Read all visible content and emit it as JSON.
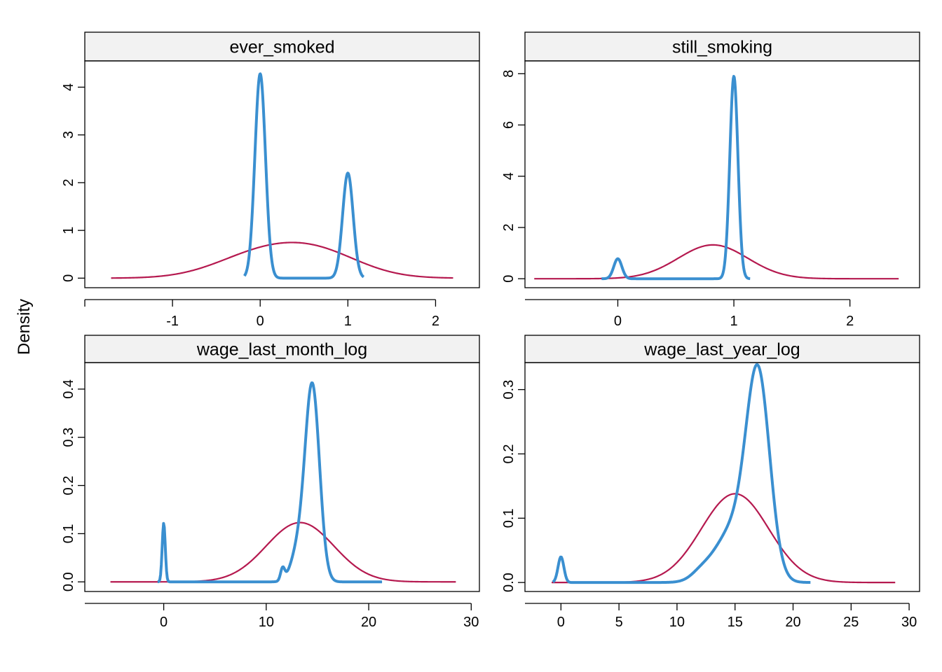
{
  "ylabel": "Density",
  "colors": {
    "observed": "#3a8fd0",
    "imputed": "#b5194f",
    "strip_bg": "#f2f2f2"
  },
  "chart_data": [
    {
      "type": "line",
      "title": "ever_smoked",
      "xlim": [
        -2.0,
        2.5
      ],
      "ylim": [
        -0.2,
        4.55
      ],
      "xticks": [
        -1,
        0,
        1,
        2
      ],
      "yticks": [
        0,
        1,
        2,
        3,
        4
      ],
      "series": [
        {
          "role": "observed",
          "kind": "mixture",
          "range": [
            -0.18,
            1.18
          ],
          "components": [
            {
              "mu": 0,
              "sd": 0.06,
              "peak": 4.28
            },
            {
              "mu": 1,
              "sd": 0.06,
              "peak": 2.2
            }
          ]
        },
        {
          "role": "imputed",
          "kind": "mixture",
          "range": [
            -1.7,
            2.2
          ],
          "components": [
            {
              "mu": -0.05,
              "sd": 0.5,
              "peak": 0.43
            },
            {
              "mu": 0.65,
              "sd": 0.5,
              "peak": 0.52
            }
          ]
        }
      ]
    },
    {
      "type": "line",
      "title": "still_smoking",
      "xlim": [
        -0.8,
        2.6
      ],
      "ylim": [
        -0.35,
        8.5
      ],
      "xticks": [
        0,
        1,
        2
      ],
      "yticks": [
        0,
        2,
        4,
        6,
        8
      ],
      "series": [
        {
          "role": "observed",
          "kind": "mixture",
          "range": [
            -0.14,
            1.14
          ],
          "components": [
            {
              "mu": 0,
              "sd": 0.035,
              "peak": 0.78
            },
            {
              "mu": 1,
              "sd": 0.035,
              "peak": 7.9
            }
          ]
        },
        {
          "role": "imputed",
          "kind": "mixture",
          "range": [
            -0.72,
            2.42
          ],
          "components": [
            {
              "mu": 0.82,
              "sd": 0.3,
              "peak": 1.32
            }
          ]
        }
      ]
    },
    {
      "type": "line",
      "title": "wage_last_month_log",
      "xlim": [
        -7.7,
        30.8
      ],
      "ylim": [
        -0.02,
        0.455
      ],
      "xticks": [
        0,
        10,
        20,
        30
      ],
      "yticks": [
        0.0,
        0.1,
        0.2,
        0.3,
        0.4
      ],
      "series": [
        {
          "role": "observed",
          "kind": "mixture",
          "range": [
            -0.6,
            21.3
          ],
          "components": [
            {
              "mu": 0,
              "sd": 0.15,
              "peak": 0.122
            },
            {
              "mu": 11.6,
              "sd": 0.2,
              "peak": 0.025
            },
            {
              "mu": 13.1,
              "sd": 0.7,
              "peak": 0.06
            },
            {
              "mu": 14.5,
              "sd": 0.7,
              "peak": 0.405
            }
          ]
        },
        {
          "role": "imputed",
          "kind": "mixture",
          "range": [
            -5.2,
            28.5
          ],
          "components": [
            {
              "mu": 13.3,
              "sd": 3.3,
              "peak": 0.123
            }
          ]
        }
      ]
    },
    {
      "type": "line",
      "title": "wage_last_year_log",
      "xlim": [
        -3.1,
        30.9
      ],
      "ylim": [
        -0.014,
        0.342
      ],
      "xticks": [
        0,
        5,
        10,
        15,
        20,
        25,
        30
      ],
      "yticks": [
        0.0,
        0.1,
        0.2,
        0.3
      ],
      "series": [
        {
          "role": "observed",
          "kind": "mixture",
          "range": [
            -0.7,
            21.5
          ],
          "components": [
            {
              "mu": 0,
              "sd": 0.25,
              "peak": 0.04
            },
            {
              "mu": 12,
              "sd": 0.8,
              "peak": 0.008
            },
            {
              "mu": 15,
              "sd": 1.7,
              "peak": 0.085
            },
            {
              "mu": 17,
              "sd": 1.0,
              "peak": 0.295
            }
          ]
        },
        {
          "role": "imputed",
          "kind": "mixture",
          "range": [
            -0.8,
            28.8
          ],
          "components": [
            {
              "mu": 15.0,
              "sd": 2.9,
              "peak": 0.138
            }
          ]
        }
      ]
    }
  ]
}
